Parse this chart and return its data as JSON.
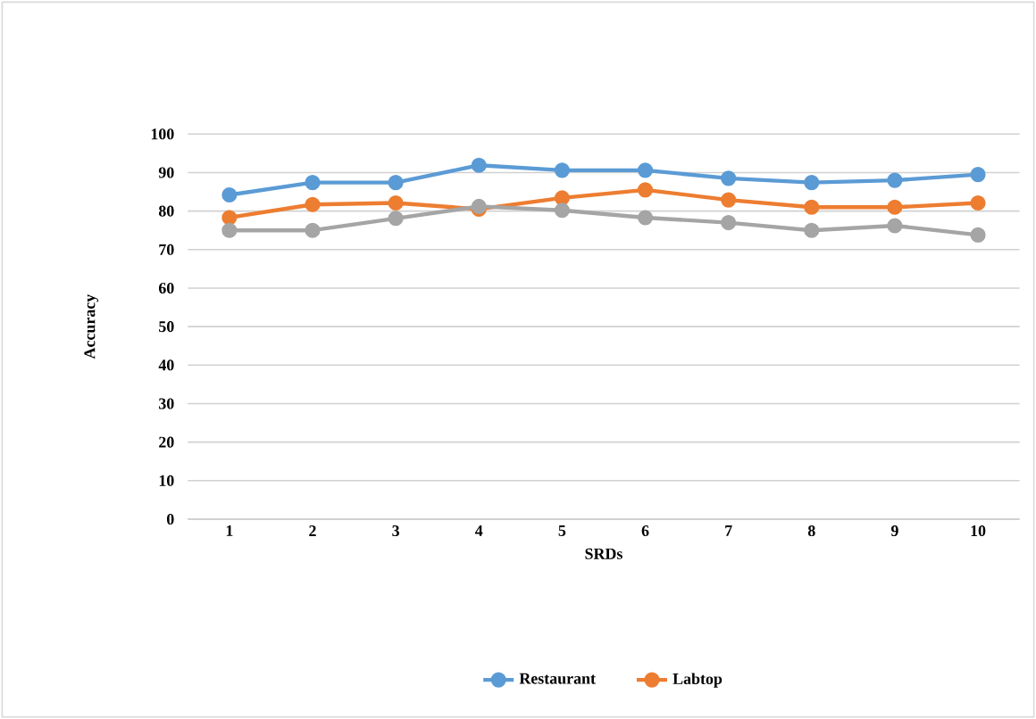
{
  "chart_data": {
    "type": "line",
    "xlabel": "SRDs",
    "ylabel": "Accuracy",
    "categories": [
      "1",
      "2",
      "3",
      "4",
      "5",
      "6",
      "7",
      "8",
      "9",
      "10"
    ],
    "series": [
      {
        "name": "Restaurant",
        "color": "#5b9bd5",
        "values": [
          84.2,
          87.4,
          87.4,
          91.9,
          90.6,
          90.6,
          88.5,
          87.4,
          88.0,
          89.5
        ]
      },
      {
        "name": "Labtop",
        "color": "#ed7d31",
        "values": [
          78.3,
          81.7,
          82.1,
          80.5,
          83.4,
          85.5,
          82.9,
          81.0,
          81.0,
          82.1
        ]
      },
      {
        "color": "#a5a5a5",
        "values": [
          75.0,
          75.0,
          78.1,
          81.2,
          80.2,
          78.3,
          77.0,
          75.0,
          76.2,
          73.8
        ]
      }
    ],
    "ylim": [
      0,
      100
    ],
    "yticks": [
      0,
      10,
      20,
      30,
      40,
      50,
      60,
      70,
      80,
      90,
      100
    ],
    "grid": "y",
    "legend": "bottom",
    "marker": "circle",
    "line_style": "solid"
  }
}
